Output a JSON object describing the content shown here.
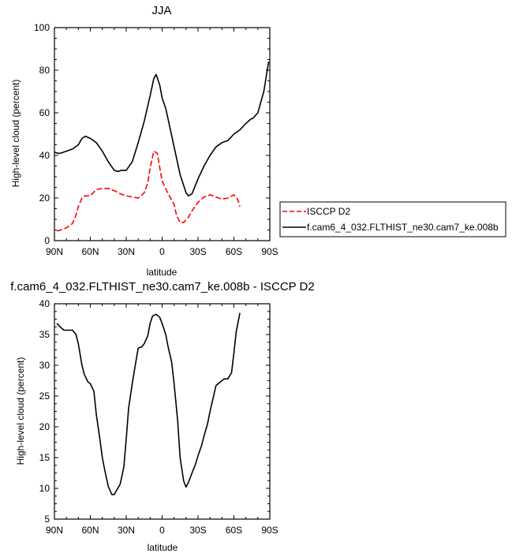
{
  "chart_data": [
    {
      "type": "line",
      "title": "JJA",
      "xlabel": "latitude",
      "ylabel": "High-level cloud (percent)",
      "x_axis_orientation": "90N on left to 90S on right (latitude, N positive)",
      "xlim": [
        90,
        -90
      ],
      "ylim": [
        0,
        100
      ],
      "xticks": [
        90,
        60,
        30,
        0,
        -30,
        -60,
        -90
      ],
      "xtick_labels": [
        "90N",
        "60N",
        "30N",
        "0",
        "30S",
        "60S",
        "90S"
      ],
      "yticks": [
        0,
        20,
        40,
        60,
        80,
        100
      ],
      "ytick_labels": [
        "0",
        "20",
        "40",
        "60",
        "80",
        "100"
      ],
      "legend_position": "right, outside plot",
      "series": [
        {
          "name": "ISCCP D2",
          "color": "#ff0000",
          "dash": "dashed",
          "x": [
            88,
            85,
            80,
            75,
            72,
            70,
            67,
            65,
            60,
            55,
            50,
            45,
            40,
            35,
            30,
            25,
            20,
            15,
            12,
            10,
            7,
            4,
            0,
            -5,
            -10,
            -12,
            -15,
            -18,
            -22,
            -25,
            -30,
            -35,
            -40,
            -45,
            -50,
            -55,
            -60,
            -63,
            -65
          ],
          "y": [
            4.5,
            5,
            6,
            8,
            12,
            16,
            20,
            21,
            21,
            24,
            24.5,
            24.5,
            23.5,
            22,
            21,
            20.5,
            20,
            22.5,
            27,
            34,
            42,
            41,
            28,
            22,
            17,
            12,
            8.5,
            8.5,
            11,
            14,
            18,
            20.5,
            21.5,
            20.5,
            19.5,
            20,
            21.5,
            19.5,
            16
          ]
        },
        {
          "name": "f.cam6_4_032.FLTHIST_ne30.cam7_ke.008b",
          "color": "#000000",
          "dash": "solid",
          "x": [
            90,
            87,
            85,
            80,
            75,
            70,
            67,
            64,
            60,
            55,
            50,
            45,
            40,
            37,
            34,
            30,
            25,
            20,
            15,
            10,
            7,
            5,
            2,
            0,
            -3,
            -5,
            -10,
            -15,
            -20,
            -22,
            -25,
            -30,
            -35,
            -40,
            -45,
            -50,
            -55,
            -60,
            -65,
            -70,
            -74,
            -76,
            -80,
            -85,
            -89
          ],
          "y": [
            41.5,
            41,
            41,
            42,
            43,
            45,
            48,
            49,
            48,
            46,
            42,
            37,
            33,
            32.5,
            33,
            33,
            37,
            46,
            56,
            68,
            76,
            78,
            73,
            67,
            62,
            57,
            44,
            31,
            22.5,
            21,
            22,
            29,
            35,
            40,
            44,
            46,
            47,
            50,
            52,
            55,
            57,
            57.5,
            60,
            70,
            84
          ]
        }
      ]
    },
    {
      "type": "line",
      "title": "f.cam6_4_032.FLTHIST_ne30.cam7_ke.008b - ISCCP D2",
      "xlabel": "latitude",
      "ylabel": "High-level cloud (percent)",
      "xlim": [
        90,
        -90
      ],
      "ylim": [
        5,
        40
      ],
      "xticks": [
        90,
        60,
        30,
        0,
        -30,
        -60,
        -90
      ],
      "xtick_labels": [
        "90N",
        "60N",
        "30N",
        "0",
        "30S",
        "60S",
        "90S"
      ],
      "yticks": [
        5,
        10,
        15,
        20,
        25,
        30,
        35,
        40
      ],
      "ytick_labels": [
        "5",
        "10",
        "15",
        "20",
        "25",
        "30",
        "35",
        "40"
      ],
      "series": [
        {
          "color": "#000000",
          "dash": "solid",
          "x": [
            88,
            85,
            82,
            78,
            75,
            72,
            70,
            67,
            65,
            62,
            60,
            57,
            55,
            52,
            50,
            48,
            45,
            42,
            40,
            38,
            35,
            32,
            30,
            28,
            25,
            22,
            20,
            17,
            15,
            12,
            10,
            8,
            5,
            2,
            0,
            -3,
            -5,
            -8,
            -10,
            -13,
            -15,
            -18,
            -20,
            -22,
            -25,
            -28,
            -30,
            -33,
            -35,
            -38,
            -40,
            -45,
            -50,
            -52,
            -55,
            -58,
            -60,
            -62,
            -65
          ],
          "y": [
            36.8,
            36.2,
            35.7,
            35.7,
            35.7,
            35,
            33.5,
            30,
            28.5,
            27.3,
            27,
            25.8,
            22,
            18,
            15,
            13,
            10.3,
            9,
            9,
            9.7,
            10.7,
            13.5,
            18,
            23,
            27,
            30.5,
            32.8,
            33,
            33.5,
            34.8,
            36.8,
            38,
            38.3,
            37.8,
            36.8,
            35,
            33,
            30.5,
            27,
            21,
            15,
            11.2,
            10.2,
            11,
            12.5,
            14,
            15.3,
            17,
            18.5,
            20.5,
            22.5,
            26.7,
            27.5,
            27.8,
            27.8,
            28.8,
            32,
            35.5,
            38.5
          ]
        }
      ]
    }
  ]
}
